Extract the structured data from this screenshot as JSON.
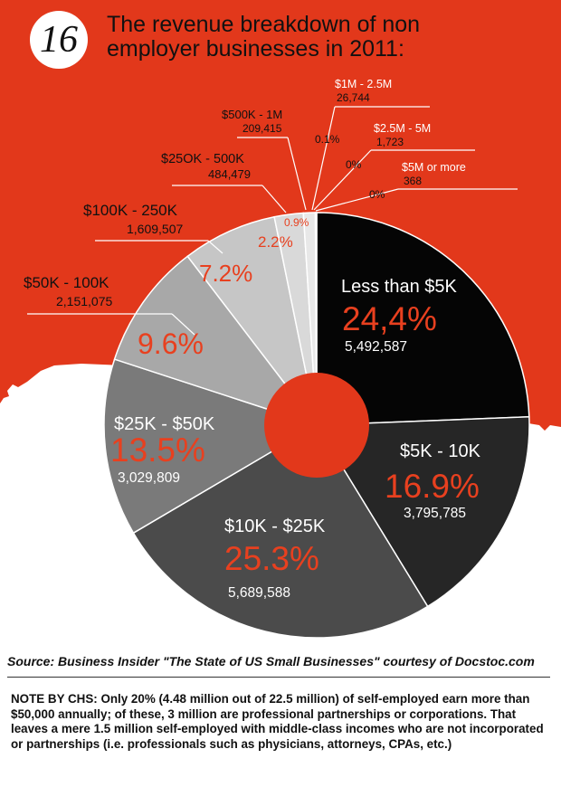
{
  "badge": "16",
  "title_lines": [
    "The revenue breakdown of non",
    "employer businesses in 2011:"
  ],
  "source": "Source: Business Insider \"The State of US Small Businesses\"  courtesy of Docstoc.com",
  "note": "NOTE BY CHS: Only 20% (4.48 million out of 22.5 million) of self-employed earn more than $50,000 annually; of these, 3 million are professional partnerships or corporations. That leaves a mere 1.5 million self-employed with middle-class incomes who are not incorporated or partnerships (i.e. professionals such as physicians, attorneys, CPAs, etc.)",
  "colors": {
    "background_red": "#e2381b",
    "accent": "#e8401f",
    "text_dark": "#111111"
  },
  "chart_data": {
    "type": "pie",
    "title": "The revenue breakdown of non employer businesses in 2011:",
    "slices": [
      {
        "label": "Less than $5K",
        "pct_text": "24,4%",
        "pct": 24.4,
        "count": "5,492,587",
        "color": "#050505"
      },
      {
        "label": "$5K - 10K",
        "pct_text": "16.9%",
        "pct": 16.9,
        "count": "3,795,785",
        "color": "#262626"
      },
      {
        "label": "$10K - $25K",
        "pct_text": "25.3%",
        "pct": 25.3,
        "count": "5,689,588",
        "color": "#4b4b4b"
      },
      {
        "label": "$25K - $50K",
        "pct_text": "13.5%",
        "pct": 13.5,
        "count": "3,029,809",
        "color": "#7a7a7a"
      },
      {
        "label": "$50K - 100K",
        "pct_text": "9.6%",
        "pct": 9.6,
        "count": "2,151,075",
        "color": "#a8a8a8"
      },
      {
        "label": "$100K - 250K",
        "pct_text": "7.2%",
        "pct": 7.2,
        "count": "1,609,507",
        "color": "#c6c6c6"
      },
      {
        "label": "$25OK - 500K",
        "pct_text": "2.2%",
        "pct": 2.2,
        "count": "484,479",
        "color": "#d9d9d9"
      },
      {
        "label": "$500K - 1M",
        "pct_text": "0.9%",
        "pct": 0.9,
        "count": "209,415",
        "color": "#e8e8e8"
      },
      {
        "label": "$1M - 2.5M",
        "pct_text": "0.1%",
        "pct": 0.1,
        "count": "26,744",
        "color": "#f0f0f0"
      },
      {
        "label": "$2.5M - 5M",
        "pct_text": "0%",
        "pct": 0,
        "count": "1,723",
        "color": "#f5f5f5"
      },
      {
        "label": "$5M or more",
        "pct_text": "0%",
        "pct": 0,
        "count": "368",
        "color": "#f8f8f8"
      }
    ]
  }
}
